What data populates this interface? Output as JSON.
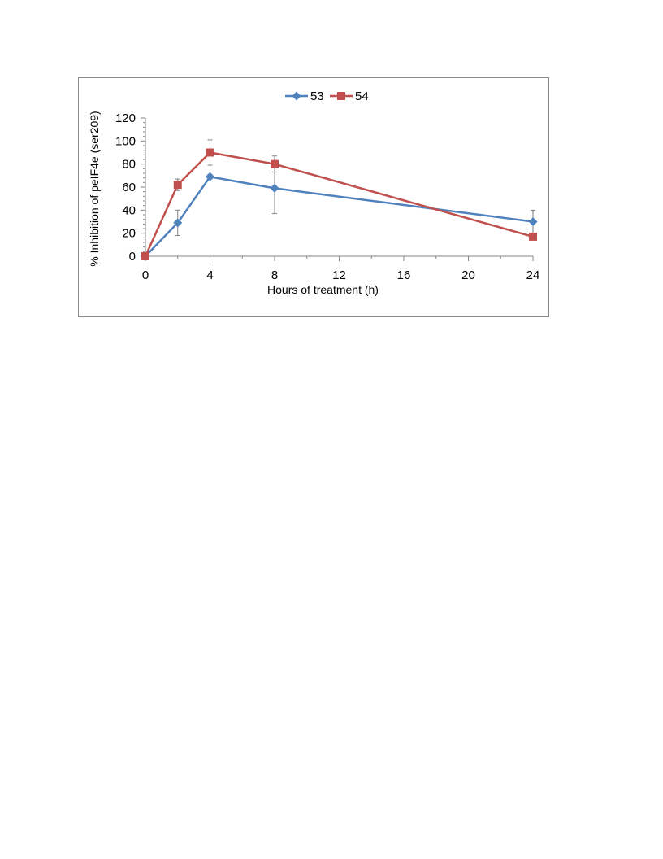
{
  "chart_data": {
    "type": "line",
    "xlabel": "Hours of treatment (h)",
    "ylabel": "% Inhibition of peIF4e (ser209)",
    "xlim": [
      0,
      24
    ],
    "ylim": [
      0,
      120
    ],
    "xticks": [
      0,
      4,
      8,
      12,
      16,
      20,
      24
    ],
    "yticks": [
      0,
      20,
      40,
      60,
      80,
      100,
      120
    ],
    "legend": "top-center",
    "grid": false,
    "series": [
      {
        "name": "53",
        "color": "#4f81bd",
        "marker": "diamond",
        "x": [
          0,
          2,
          4,
          8,
          24
        ],
        "y": [
          0,
          29,
          69,
          59,
          30
        ],
        "error": [
          0,
          11,
          2,
          22,
          10
        ]
      },
      {
        "name": "54",
        "color": "#c0504d",
        "marker": "square",
        "x": [
          0,
          2,
          4,
          8,
          24
        ],
        "y": [
          0,
          62,
          90,
          80,
          17
        ],
        "error": [
          0,
          5,
          11,
          7,
          2
        ]
      }
    ]
  }
}
